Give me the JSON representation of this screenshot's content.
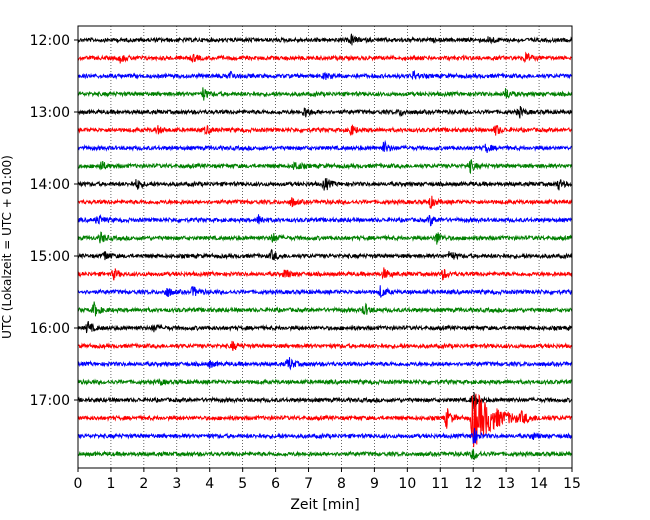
{
  "chart_data": {
    "type": "line",
    "chart_kind": "helicorder",
    "xlabel": "Zeit  [min]",
    "ylabel": "UTC (Lokalzeit = UTC + 01:00)",
    "xlim": [
      0,
      15
    ],
    "x_ticks": [
      "0",
      "1",
      "2",
      "3",
      "4",
      "5",
      "6",
      "7",
      "8",
      "9",
      "10",
      "11",
      "12",
      "13",
      "14",
      "15"
    ],
    "grid": "vertical dotted at each minute",
    "start_time": "12:00",
    "row_interval_minutes": 15,
    "row_colors": [
      "#000000",
      "#ff0000",
      "#0000ff",
      "#008000"
    ],
    "y_tick_labels": [
      "12:00",
      "13:00",
      "14:00",
      "15:00",
      "16:00",
      "17:00"
    ],
    "rows": [
      {
        "time": "12:00",
        "color": "#000000",
        "events": [
          {
            "t": 8.3,
            "a": 5
          },
          {
            "t": 12.5,
            "a": 4
          }
        ]
      },
      {
        "time": "12:15",
        "color": "#ff0000",
        "events": [
          {
            "t": 1.3,
            "a": 4
          },
          {
            "t": 3.5,
            "a": 3
          },
          {
            "t": 13.6,
            "a": 5
          }
        ]
      },
      {
        "time": "12:30",
        "color": "#0000ff",
        "events": [
          {
            "t": 4.6,
            "a": 5
          },
          {
            "t": 7.5,
            "a": 3
          },
          {
            "t": 10.2,
            "a": 4
          }
        ]
      },
      {
        "time": "12:45",
        "color": "#008000",
        "events": [
          {
            "t": 3.8,
            "a": 6
          },
          {
            "t": 13.0,
            "a": 5
          }
        ]
      },
      {
        "time": "13:00",
        "color": "#000000",
        "events": [
          {
            "t": 6.9,
            "a": 5
          },
          {
            "t": 9.8,
            "a": 3
          },
          {
            "t": 13.4,
            "a": 5
          }
        ]
      },
      {
        "time": "13:15",
        "color": "#ff0000",
        "events": [
          {
            "t": 2.4,
            "a": 4
          },
          {
            "t": 3.9,
            "a": 4
          },
          {
            "t": 8.3,
            "a": 5
          },
          {
            "t": 12.7,
            "a": 5
          }
        ]
      },
      {
        "time": "13:30",
        "color": "#0000ff",
        "events": [
          {
            "t": 9.3,
            "a": 6
          },
          {
            "t": 12.4,
            "a": 4
          }
        ]
      },
      {
        "time": "13:45",
        "color": "#008000",
        "events": [
          {
            "t": 0.7,
            "a": 5
          },
          {
            "t": 6.6,
            "a": 5
          },
          {
            "t": 11.9,
            "a": 6
          }
        ]
      },
      {
        "time": "14:00",
        "color": "#000000",
        "events": [
          {
            "t": 1.8,
            "a": 5
          },
          {
            "t": 7.5,
            "a": 7
          },
          {
            "t": 14.6,
            "a": 5
          }
        ]
      },
      {
        "time": "14:15",
        "color": "#ff0000",
        "events": [
          {
            "t": 6.5,
            "a": 4
          },
          {
            "t": 10.7,
            "a": 6
          }
        ]
      },
      {
        "time": "14:30",
        "color": "#0000ff",
        "events": [
          {
            "t": 0.6,
            "a": 5
          },
          {
            "t": 5.5,
            "a": 5
          },
          {
            "t": 10.7,
            "a": 5
          }
        ]
      },
      {
        "time": "14:45",
        "color": "#008000",
        "events": [
          {
            "t": 0.7,
            "a": 5
          },
          {
            "t": 5.9,
            "a": 5
          },
          {
            "t": 10.9,
            "a": 6
          }
        ]
      },
      {
        "time": "15:00",
        "color": "#000000",
        "events": [
          {
            "t": 0.8,
            "a": 5
          },
          {
            "t": 5.9,
            "a": 5
          },
          {
            "t": 11.3,
            "a": 5
          }
        ]
      },
      {
        "time": "15:15",
        "color": "#ff0000",
        "events": [
          {
            "t": 1.1,
            "a": 5
          },
          {
            "t": 6.3,
            "a": 5
          },
          {
            "t": 9.3,
            "a": 5
          },
          {
            "t": 11.1,
            "a": 5
          }
        ]
      },
      {
        "time": "15:30",
        "color": "#0000ff",
        "events": [
          {
            "t": 2.7,
            "a": 5
          },
          {
            "t": 3.5,
            "a": 5
          },
          {
            "t": 9.2,
            "a": 6
          }
        ]
      },
      {
        "time": "15:45",
        "color": "#008000",
        "events": [
          {
            "t": 0.5,
            "a": 7
          },
          {
            "t": 8.7,
            "a": 6
          }
        ]
      },
      {
        "time": "16:00",
        "color": "#000000",
        "events": [
          {
            "t": 0.3,
            "a": 6
          },
          {
            "t": 2.3,
            "a": 3
          }
        ]
      },
      {
        "time": "16:15",
        "color": "#ff0000",
        "events": [
          {
            "t": 4.7,
            "a": 4
          }
        ]
      },
      {
        "time": "16:30",
        "color": "#0000ff",
        "events": [
          {
            "t": 6.4,
            "a": 7
          },
          {
            "t": 4.0,
            "a": 3
          }
        ]
      },
      {
        "time": "16:45",
        "color": "#008000",
        "events": [
          {
            "t": 2.5,
            "a": 2
          }
        ]
      },
      {
        "time": "17:00",
        "color": "#000000",
        "events": [
          {
            "t": 12.0,
            "a": 9
          }
        ]
      },
      {
        "time": "17:15",
        "color": "#ff0000",
        "events": [
          {
            "t": 12.0,
            "a": 30
          },
          {
            "t": 11.2,
            "a": 10
          },
          {
            "t": 13.5,
            "a": 4
          }
        ]
      },
      {
        "time": "17:30",
        "color": "#0000ff",
        "events": [
          {
            "t": 12.0,
            "a": 9
          },
          {
            "t": 13.8,
            "a": 3
          }
        ]
      },
      {
        "time": "17:45",
        "color": "#008000",
        "events": [
          {
            "t": 12.0,
            "a": 6
          }
        ]
      }
    ]
  }
}
